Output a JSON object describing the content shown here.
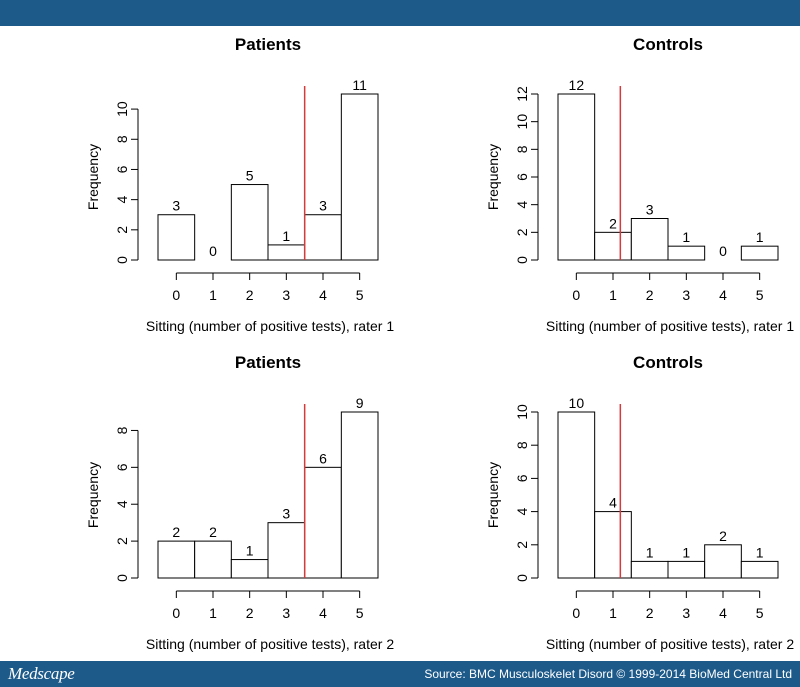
{
  "colors": {
    "bar_background": "#1d5a8a",
    "cutoff_line": "#d63a3a",
    "bar_fill": "#ffffff",
    "bar_stroke": "#000000"
  },
  "footer": {
    "logo": "Medscape",
    "source": "Source: BMC Musculoskelet Disord © 1999-2014 BioMed Central Ltd"
  },
  "chart_data": [
    {
      "type": "bar",
      "title": "Patients",
      "xlabel": "Sitting (number of positive tests), rater 1",
      "ylabel": "Frequency",
      "categories": [
        "0",
        "1",
        "2",
        "3",
        "4",
        "5"
      ],
      "values": [
        3,
        0,
        5,
        1,
        3,
        11
      ],
      "data_labels": [
        "3",
        "0",
        "5",
        "1",
        "3",
        "11"
      ],
      "yticks": [
        0,
        2,
        4,
        6,
        8,
        10
      ],
      "ylim": [
        0,
        11
      ],
      "cutoff_line_x": 3.5
    },
    {
      "type": "bar",
      "title": "Controls",
      "xlabel": "Sitting (number of positive tests), rater 1",
      "ylabel": "Frequency",
      "categories": [
        "0",
        "1",
        "2",
        "3",
        "4",
        "5"
      ],
      "values": [
        12,
        2,
        3,
        1,
        0,
        1
      ],
      "data_labels": [
        "12",
        "2",
        "3",
        "1",
        "0",
        "1"
      ],
      "yticks": [
        0,
        2,
        4,
        6,
        8,
        10,
        12
      ],
      "ylim": [
        0,
        12
      ],
      "cutoff_line_x": 1.2
    },
    {
      "type": "bar",
      "title": "Patients",
      "xlabel": "Sitting (number of positive tests), rater 2",
      "ylabel": "Frequency",
      "categories": [
        "0",
        "1",
        "2",
        "3",
        "4",
        "5"
      ],
      "values": [
        2,
        2,
        1,
        3,
        6,
        9
      ],
      "data_labels": [
        "2",
        "2",
        "1",
        "3",
        "6",
        "9"
      ],
      "yticks": [
        0,
        2,
        4,
        6,
        8
      ],
      "ylim": [
        0,
        9
      ],
      "cutoff_line_x": 3.5
    },
    {
      "type": "bar",
      "title": "Controls",
      "xlabel": "Sitting (number of positive tests), rater 2",
      "ylabel": "Frequency",
      "categories": [
        "0",
        "1",
        "2",
        "3",
        "4",
        "5"
      ],
      "values": [
        10,
        4,
        1,
        1,
        2,
        1
      ],
      "data_labels": [
        "10",
        "4",
        "1",
        "1",
        "2",
        "1"
      ],
      "yticks": [
        0,
        2,
        4,
        6,
        8,
        10
      ],
      "ylim": [
        0,
        10
      ],
      "cutoff_line_x": 1.2
    }
  ]
}
